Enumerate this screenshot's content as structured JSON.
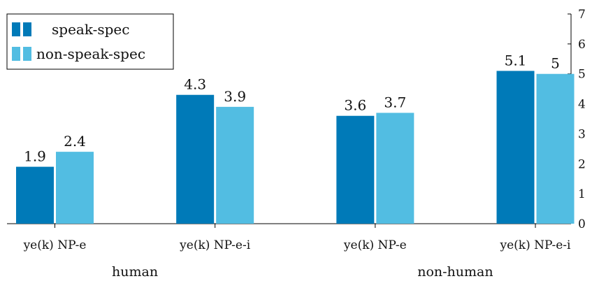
{
  "chart_data": {
    "type": "bar",
    "categories": [
      "ye(k) NP-e",
      "ye(k) NP-e-i",
      "ye(k) NP-e",
      "ye(k) NP-e-i"
    ],
    "groups": [
      "human",
      "non-human"
    ],
    "series": [
      {
        "name": "speak-spec",
        "values": [
          1.9,
          4.3,
          3.6,
          5.1
        ],
        "value_labels": [
          "1.9",
          "4.3",
          "3.6",
          "5.1"
        ],
        "color": "#007ab8"
      },
      {
        "name": "non-speak-spec",
        "values": [
          2.4,
          3.9,
          3.7,
          5.0
        ],
        "value_labels": [
          "2.4",
          "3.9",
          "3.7",
          "5"
        ],
        "color": "#52bde2"
      }
    ],
    "ylim": [
      0,
      7
    ],
    "yticks": [
      "0",
      "1",
      "2",
      "3",
      "4",
      "5",
      "6",
      "7"
    ],
    "y_axis_side": "right",
    "legend_position": "top-left",
    "grid": false,
    "title": "",
    "xlabel": "",
    "ylabel": ""
  }
}
